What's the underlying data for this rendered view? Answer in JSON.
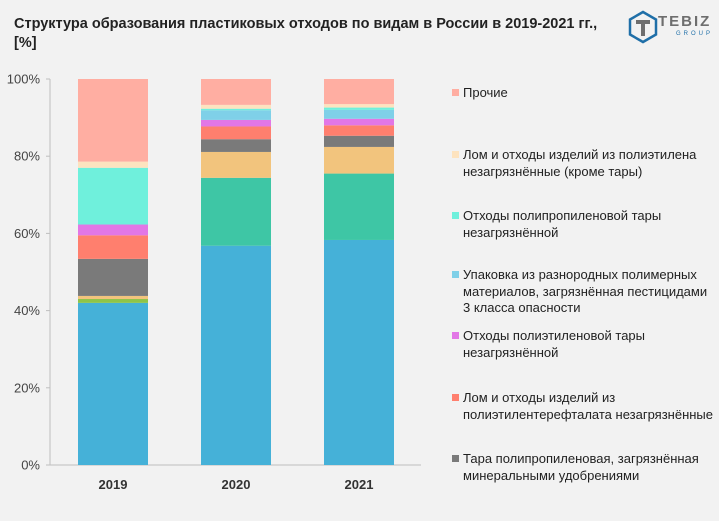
{
  "title": "Структура образования пластиковых отходов по видам в России в 2019-2021 гг., [%]",
  "logo": {
    "word": "TEBIZ",
    "sub": "GROUP",
    "icon": "tebiz-logo-icon"
  },
  "chart_data": {
    "type": "bar",
    "stacked": true,
    "categories": [
      "2019",
      "2020",
      "2021"
    ],
    "ylim": [
      0,
      100
    ],
    "yticks": [
      "0%",
      "20%",
      "40%",
      "60%",
      "80%",
      "100%"
    ],
    "grid": false,
    "legend_position": "right",
    "series": [
      {
        "name": "",
        "color": "#45b1d8",
        "values": [
          42.0,
          56.8,
          58.3
        ]
      },
      {
        "name": "",
        "color": "#8ec449",
        "values": [
          1.0,
          0.0,
          0.0
        ]
      },
      {
        "name": "",
        "color": "#3ec6a5",
        "values": [
          0.0,
          17.6,
          17.2
        ]
      },
      {
        "name": "",
        "color": "#f2c47d",
        "values": [
          0.8,
          6.7,
          6.9
        ]
      },
      {
        "name": "Тара полипропиленовая, загрязнённая минеральными удобрениями",
        "color": "#7a7a7a",
        "values": [
          9.6,
          3.3,
          2.9
        ]
      },
      {
        "name": "Лом и отходы изделий из полиэтилентерефталата незагрязнённые",
        "color": "#ff7f6e",
        "values": [
          6.1,
          3.3,
          2.7
        ]
      },
      {
        "name": "Отходы полиэтиленовой тары незагрязнённой",
        "color": "#e277e6",
        "values": [
          2.8,
          1.7,
          1.7
        ]
      },
      {
        "name": "Упаковка из разнородных полимерных материалов, загрязнённая пестицидами 3 класса опасности",
        "color": "#7fd0e8",
        "values": [
          0.0,
          2.5,
          2.3
        ]
      },
      {
        "name": "Отходы полипропиленовой тары незагрязнённой",
        "color": "#6ff0dc",
        "values": [
          14.7,
          0.4,
          0.6
        ]
      },
      {
        "name": "Лом и отходы изделий из полиэтилена незагрязнённые (кроме тары)",
        "color": "#fde3bf",
        "values": [
          1.6,
          1.0,
          0.9
        ]
      },
      {
        "name": "Прочие",
        "color": "#ffaea2",
        "values": [
          21.4,
          6.7,
          6.5
        ]
      }
    ]
  }
}
